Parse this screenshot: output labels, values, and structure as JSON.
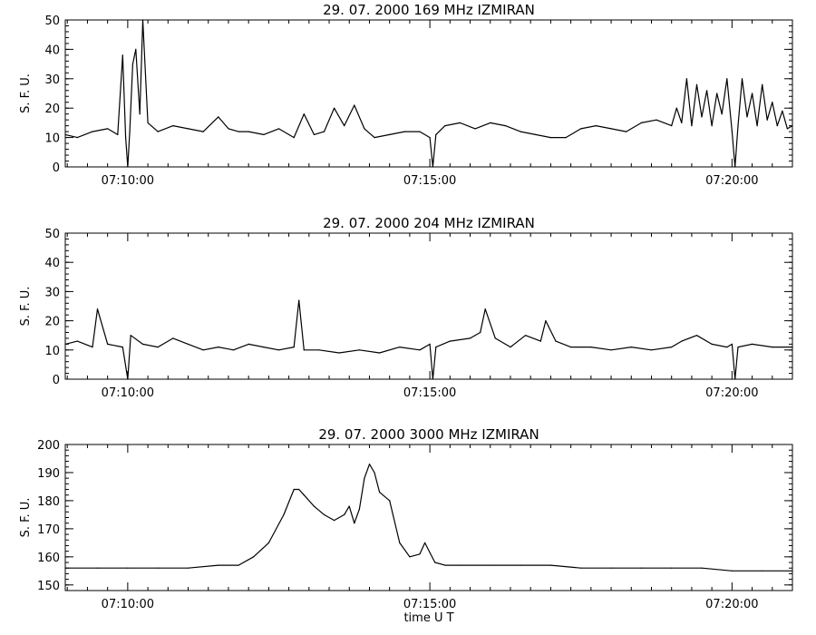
{
  "chart_data": [
    {
      "type": "line",
      "title": "29.  07.  2000    169 MHz    IZMIRAN",
      "ylabel": "S. F. U.",
      "xlabel": "",
      "ylim": [
        0,
        50
      ],
      "yticks": [
        0,
        10,
        20,
        30,
        40,
        50
      ],
      "xlim": [
        "07:08:58",
        "07:21:00"
      ],
      "xtick_labels": [
        "07:10:00",
        "07:15:00",
        "07:20:00"
      ],
      "x_unit": "time UT (HH:MM:SS)",
      "series": [
        {
          "color": "#000000",
          "x": [
            "07:08:58",
            "07:09:10",
            "07:09:25",
            "07:09:40",
            "07:09:50",
            "07:09:55",
            "07:09:58",
            "07:10:00",
            "07:10:02",
            "07:10:05",
            "07:10:08",
            "07:10:12",
            "07:10:15",
            "07:10:20",
            "07:10:30",
            "07:10:45",
            "07:11:00",
            "07:11:15",
            "07:11:30",
            "07:11:40",
            "07:11:50",
            "07:12:00",
            "07:12:15",
            "07:12:30",
            "07:12:45",
            "07:12:55",
            "07:13:05",
            "07:13:15",
            "07:13:25",
            "07:13:35",
            "07:13:45",
            "07:13:55",
            "07:14:05",
            "07:14:20",
            "07:14:35",
            "07:14:50",
            "07:15:00",
            "07:15:03",
            "07:15:06",
            "07:15:15",
            "07:15:30",
            "07:15:45",
            "07:16:00",
            "07:16:15",
            "07:16:30",
            "07:16:45",
            "07:17:00",
            "07:17:15",
            "07:17:30",
            "07:17:45",
            "07:18:00",
            "07:18:15",
            "07:18:30",
            "07:18:45",
            "07:19:00",
            "07:19:05",
            "07:19:10",
            "07:19:15",
            "07:19:20",
            "07:19:25",
            "07:19:30",
            "07:19:35",
            "07:19:40",
            "07:19:45",
            "07:19:50",
            "07:19:55",
            "07:20:00",
            "07:20:03",
            "07:20:06",
            "07:20:10",
            "07:20:15",
            "07:20:20",
            "07:20:25",
            "07:20:30",
            "07:20:35",
            "07:20:40",
            "07:20:45",
            "07:20:50",
            "07:20:55",
            "07:21:00"
          ],
          "values": [
            11,
            10,
            12,
            13,
            11,
            38,
            10,
            0,
            12,
            35,
            40,
            18,
            50,
            15,
            12,
            14,
            13,
            12,
            17,
            13,
            12,
            12,
            11,
            13,
            10,
            18,
            11,
            12,
            20,
            14,
            21,
            13,
            10,
            11,
            12,
            12,
            10,
            0,
            11,
            14,
            15,
            13,
            15,
            14,
            12,
            11,
            10,
            10,
            13,
            14,
            13,
            12,
            15,
            16,
            14,
            20,
            15,
            30,
            14,
            28,
            17,
            26,
            14,
            25,
            18,
            30,
            12,
            0,
            14,
            30,
            17,
            25,
            14,
            28,
            16,
            22,
            14,
            19,
            13,
            14
          ]
        }
      ]
    },
    {
      "type": "line",
      "title": "29.  07.  2000    204 MHz    IZMIRAN",
      "ylabel": "S. F. U.",
      "xlabel": "",
      "ylim": [
        0,
        50
      ],
      "yticks": [
        0,
        10,
        20,
        30,
        40,
        50
      ],
      "xlim": [
        "07:08:58",
        "07:21:00"
      ],
      "xtick_labels": [
        "07:10:00",
        "07:15:00",
        "07:20:00"
      ],
      "x_unit": "time UT (HH:MM:SS)",
      "series": [
        {
          "color": "#000000",
          "x": [
            "07:08:58",
            "07:09:10",
            "07:09:25",
            "07:09:30",
            "07:09:40",
            "07:09:55",
            "07:10:00",
            "07:10:03",
            "07:10:15",
            "07:10:30",
            "07:10:45",
            "07:11:00",
            "07:11:15",
            "07:11:30",
            "07:11:45",
            "07:12:00",
            "07:12:15",
            "07:12:30",
            "07:12:45",
            "07:12:50",
            "07:12:55",
            "07:13:10",
            "07:13:30",
            "07:13:50",
            "07:14:10",
            "07:14:30",
            "07:14:50",
            "07:15:00",
            "07:15:03",
            "07:15:06",
            "07:15:20",
            "07:15:40",
            "07:15:50",
            "07:15:55",
            "07:16:05",
            "07:16:20",
            "07:16:35",
            "07:16:50",
            "07:16:55",
            "07:17:05",
            "07:17:20",
            "07:17:40",
            "07:18:00",
            "07:18:20",
            "07:18:40",
            "07:19:00",
            "07:19:10",
            "07:19:25",
            "07:19:40",
            "07:19:55",
            "07:20:00",
            "07:20:03",
            "07:20:06",
            "07:20:20",
            "07:20:40",
            "07:21:00"
          ],
          "values": [
            12,
            13,
            11,
            24,
            12,
            11,
            0,
            15,
            12,
            11,
            14,
            12,
            10,
            11,
            10,
            12,
            11,
            10,
            11,
            27,
            10,
            10,
            9,
            10,
            9,
            11,
            10,
            12,
            0,
            11,
            13,
            14,
            16,
            24,
            14,
            11,
            15,
            13,
            20,
            13,
            11,
            11,
            10,
            11,
            10,
            11,
            13,
            15,
            12,
            11,
            12,
            0,
            11,
            12,
            11,
            11
          ]
        }
      ]
    },
    {
      "type": "line",
      "title": "29.  07.  2000    3000 MHz    IZMIRAN",
      "ylabel": "S. F. U.",
      "xlabel": "time  U T",
      "ylim": [
        148,
        200
      ],
      "yticks": [
        150,
        160,
        170,
        180,
        190,
        200
      ],
      "xlim": [
        "07:08:58",
        "07:21:00"
      ],
      "xtick_labels": [
        "07:10:00",
        "07:15:00",
        "07:20:00"
      ],
      "x_unit": "time UT (HH:MM:SS)",
      "series": [
        {
          "color": "#000000",
          "x": [
            "07:08:58",
            "07:09:30",
            "07:10:00",
            "07:10:30",
            "07:11:00",
            "07:11:30",
            "07:11:50",
            "07:12:05",
            "07:12:20",
            "07:12:35",
            "07:12:45",
            "07:12:50",
            "07:12:55",
            "07:13:05",
            "07:13:15",
            "07:13:25",
            "07:13:35",
            "07:13:40",
            "07:13:45",
            "07:13:50",
            "07:13:55",
            "07:14:00",
            "07:14:05",
            "07:14:10",
            "07:14:20",
            "07:14:30",
            "07:14:40",
            "07:14:50",
            "07:14:55",
            "07:15:05",
            "07:15:15",
            "07:15:30",
            "07:16:00",
            "07:16:30",
            "07:17:00",
            "07:17:30",
            "07:18:00",
            "07:18:30",
            "07:19:00",
            "07:19:30",
            "07:20:00",
            "07:20:30",
            "07:21:00"
          ],
          "values": [
            156,
            156,
            156,
            156,
            156,
            157,
            157,
            160,
            165,
            175,
            184,
            184,
            182,
            178,
            175,
            173,
            175,
            178,
            172,
            177,
            188,
            193,
            190,
            183,
            180,
            165,
            160,
            161,
            165,
            158,
            157,
            157,
            157,
            157,
            157,
            156,
            156,
            156,
            156,
            156,
            155,
            155,
            155
          ]
        }
      ]
    }
  ]
}
